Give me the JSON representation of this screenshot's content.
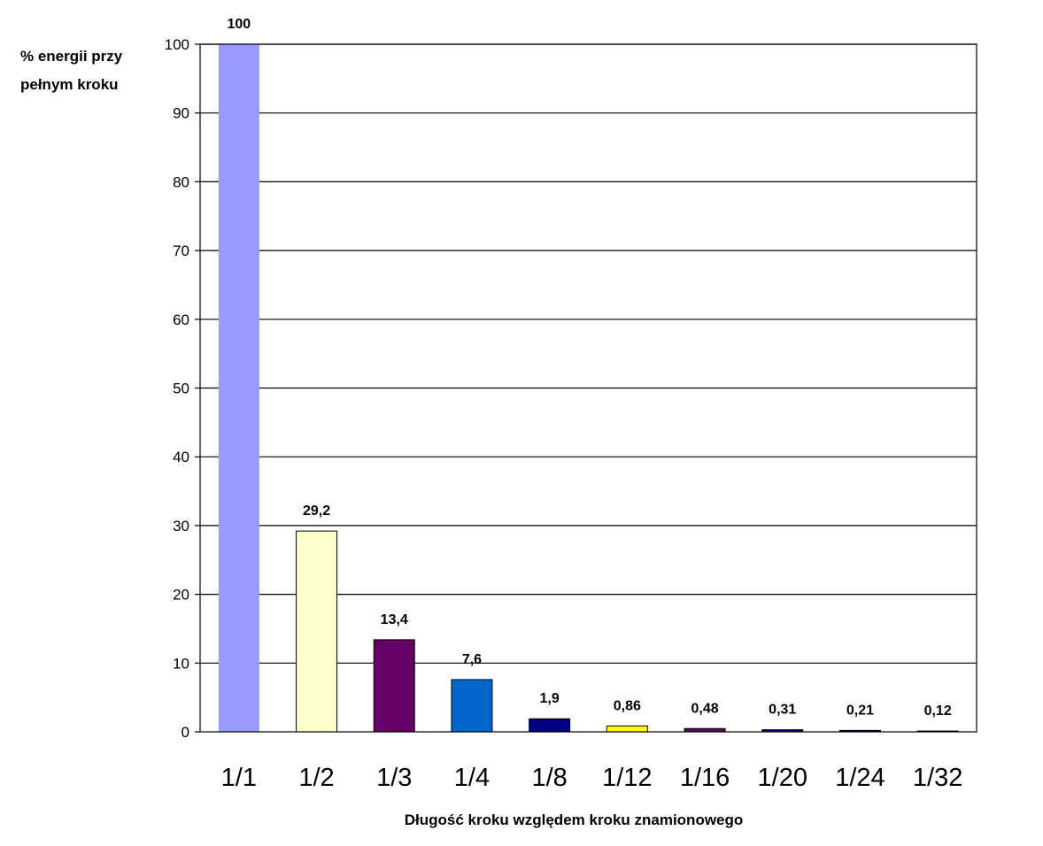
{
  "chart_data": {
    "type": "bar",
    "ylabel_lines": [
      "% energii przy",
      "pełnym kroku"
    ],
    "xlabel": "Długość kroku względem kroku znamionowego",
    "ylim": [
      0,
      100
    ],
    "yticks": [
      0,
      10,
      20,
      30,
      40,
      50,
      60,
      70,
      80,
      90,
      100
    ],
    "grid": true,
    "categories": [
      "1/1",
      "1/2",
      "1/3",
      "1/4",
      "1/8",
      "1/12",
      "1/16",
      "1/20",
      "1/24",
      "1/32"
    ],
    "values": [
      100,
      29.2,
      13.4,
      7.6,
      1.9,
      0.86,
      0.48,
      0.31,
      0.21,
      0.12
    ],
    "data_labels": [
      "100",
      "29,2",
      "13,4",
      "7,6",
      "1,9",
      "0,86",
      "0,48",
      "0,31",
      "0,21",
      "0,12"
    ],
    "colors": [
      "#9999FF",
      "#FFFFCC",
      "#660066",
      "#0066CC",
      "#000080",
      "#FFFF00",
      "#660066",
      "#000080",
      "#000080",
      "#000080"
    ]
  }
}
